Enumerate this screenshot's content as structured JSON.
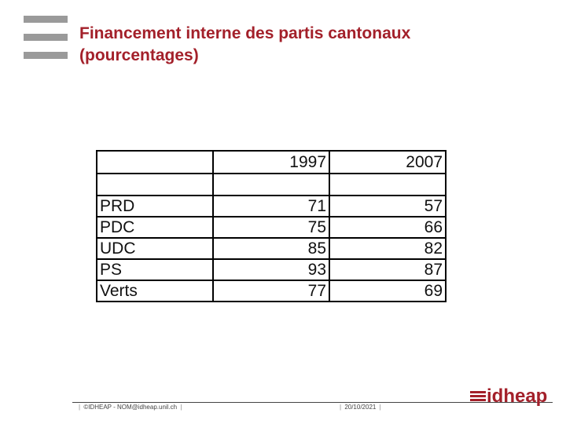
{
  "slide": {
    "title_line1": "Financement interne des partis cantonaux",
    "title_line2": "(pourcentages)"
  },
  "table": {
    "columns": [
      "",
      "1997",
      "2007"
    ],
    "rows": [
      {
        "label": "PRD",
        "v1997": "71",
        "v2007": "57"
      },
      {
        "label": "PDC",
        "v1997": "75",
        "v2007": "66"
      },
      {
        "label": "UDC",
        "v1997": "85",
        "v2007": "82"
      },
      {
        "label": "PS",
        "v1997": "93",
        "v2007": "87"
      },
      {
        "label": "Verts",
        "v1997": "77",
        "v2007": "69"
      }
    ]
  },
  "footer": {
    "copyright": "©IDHEAP - NOM@idheap.unil.ch",
    "date": "20/10/2021",
    "separator": "|"
  },
  "logo": {
    "text": "idheap"
  },
  "colors": {
    "accent": "#a3202a",
    "bars": "#9a9a9a"
  }
}
